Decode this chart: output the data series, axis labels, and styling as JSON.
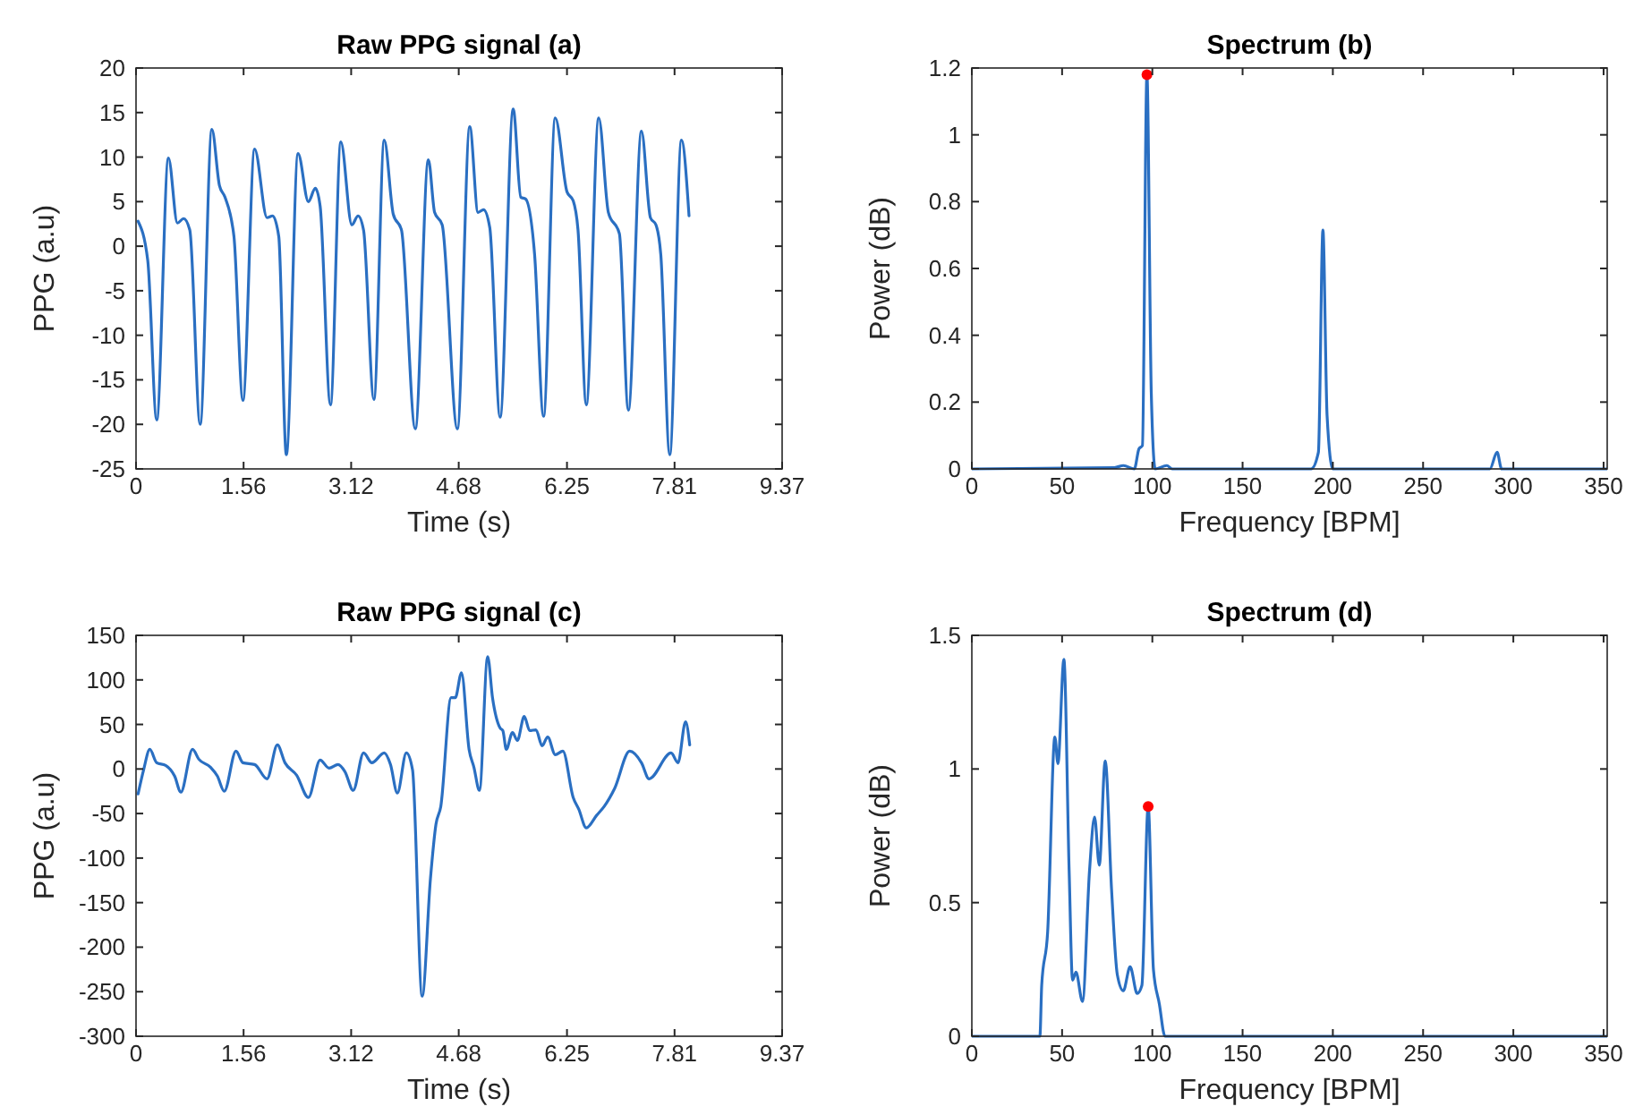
{
  "chart_data": [
    {
      "type": "line",
      "title": "Raw PPG signal (a)",
      "xlabel": "Time (s)",
      "ylabel": "PPG (a.u)",
      "xlim": [
        0,
        9.37
      ],
      "xticks": [
        0,
        1.56,
        3.12,
        4.68,
        6.25,
        7.81,
        9.37
      ],
      "ylim": [
        -25,
        20
      ],
      "yticks": [
        -25,
        -20,
        -15,
        -10,
        -5,
        0,
        5,
        10,
        15,
        20
      ],
      "grid": false,
      "series": [
        {
          "type": "line",
          "color": "#2a6fc2",
          "x": [
            0.03,
            0.17,
            0.3,
            0.47,
            0.6,
            0.69,
            0.78,
            0.93,
            1.1,
            1.21,
            1.29,
            1.42,
            1.55,
            1.72,
            1.9,
            1.98,
            2.07,
            2.18,
            2.35,
            2.5,
            2.6,
            2.67,
            2.82,
            2.97,
            3.13,
            3.22,
            3.3,
            3.45,
            3.6,
            3.73,
            3.85,
            4.05,
            4.24,
            4.33,
            4.44,
            4.66,
            4.84,
            4.96,
            5.04,
            5.13,
            5.28,
            5.47,
            5.58,
            5.65,
            5.78,
            5.91,
            6.08,
            6.25,
            6.34,
            6.41,
            6.53,
            6.71,
            6.85,
            7.01,
            7.14,
            7.33,
            7.46,
            7.54,
            7.61,
            7.74,
            7.91,
            8.02
          ],
          "values": [
            2.8,
            -1.6,
            -19.5,
            9.9,
            2.6,
            3.1,
            1.8,
            -20,
            13.1,
            6.8,
            5.5,
            1.1,
            -17.3,
            10.9,
            3.2,
            3.4,
            1.1,
            -23.4,
            10.4,
            5,
            6.5,
            4.5,
            -17.8,
            11.7,
            2.4,
            3.4,
            1.8,
            -17.2,
            11.9,
            3.6,
            1.8,
            -20.5,
            9.7,
            3.8,
            2.4,
            -20.5,
            13.4,
            3.8,
            4.1,
            2.1,
            -19.2,
            15.4,
            5.5,
            5.3,
            -0.9,
            -19.1,
            14.4,
            6.1,
            5.1,
            1.8,
            -17.8,
            14.4,
            3.8,
            1.4,
            -18.4,
            12.9,
            3.2,
            2.4,
            -0.9,
            -23.4,
            11.9,
            3.4
          ]
        }
      ]
    },
    {
      "type": "line",
      "title": "Spectrum (b)",
      "xlabel": "Frequency [BPM]",
      "ylabel": "Power (dB)",
      "xlim": [
        0,
        352
      ],
      "xticks": [
        0,
        50,
        100,
        150,
        200,
        250,
        300,
        350
      ],
      "ylim": [
        0,
        1.2
      ],
      "yticks": [
        0,
        0.2,
        0.4,
        0.6,
        0.8,
        1,
        1.2
      ],
      "grid": false,
      "series": [
        {
          "type": "line",
          "color": "#2a6fc2",
          "x": [
            0,
            79,
            84,
            90,
            92.6,
            94.5,
            97,
            99.4,
            101.6,
            108,
            111,
            188,
            192,
            194.5,
            196.8,
            200,
            287,
            291,
            293.5,
            352
          ],
          "values": [
            0,
            0.004,
            0.01,
            0,
            0.06,
            0.07,
            1.18,
            0.23,
            0,
            0.01,
            0,
            0,
            0.05,
            0.715,
            0.16,
            0,
            0,
            0.05,
            0,
            0
          ]
        },
        {
          "type": "scatter",
          "color": "#ff0000",
          "marker": "circle",
          "x": [
            97
          ],
          "values": [
            1.18
          ]
        }
      ]
    },
    {
      "type": "line",
      "title": "Raw PPG signal (c)",
      "xlabel": "Time (s)",
      "ylabel": "PPG (a.u)",
      "xlim": [
        0,
        9.37
      ],
      "xticks": [
        0,
        1.56,
        3.12,
        4.68,
        6.25,
        7.81,
        9.37
      ],
      "ylim": [
        -300,
        150
      ],
      "yticks": [
        -300,
        -250,
        -200,
        -150,
        -100,
        -50,
        0,
        50,
        100,
        150
      ],
      "grid": false,
      "series": [
        {
          "type": "line",
          "color": "#2a6fc2",
          "x": [
            0.03,
            0.11,
            0.2,
            0.3,
            0.43,
            0.56,
            0.65,
            0.82,
            0.91,
            1.08,
            1.18,
            1.28,
            1.45,
            1.55,
            1.72,
            1.9,
            2.05,
            2.16,
            2.33,
            2.5,
            2.67,
            2.8,
            2.93,
            3.03,
            3.15,
            3.3,
            3.42,
            3.6,
            3.69,
            3.79,
            3.92,
            4.01,
            4.15,
            4.27,
            4.35,
            4.42,
            4.57,
            4.63,
            4.72,
            4.83,
            4.9,
            4.98,
            5.1,
            5.17,
            5.28,
            5.32,
            5.37,
            5.46,
            5.53,
            5.63,
            5.71,
            5.8,
            5.89,
            5.97,
            6.08,
            6.19,
            6.34,
            6.42,
            6.53,
            6.68,
            6.79,
            6.94,
            7.16,
            7.33,
            7.44,
            7.76,
            7.86,
            7.97,
            8.03
          ],
          "values": [
            -28,
            -1,
            22,
            7,
            4,
            -8,
            -26,
            22,
            11,
            2,
            -8,
            -25,
            20,
            7,
            5,
            -11,
            27,
            7,
            -7,
            -32,
            10,
            1,
            5,
            -3,
            -24,
            18,
            7,
            18,
            5,
            -27,
            18,
            -1,
            -255,
            -123,
            -62,
            -42,
            80,
            80,
            108,
            22,
            2,
            -24,
            126,
            80,
            46,
            43,
            22,
            41,
            32,
            59,
            43,
            44,
            26,
            36,
            16,
            20,
            -32,
            -45,
            -66,
            -52,
            -42,
            -22,
            20,
            7,
            -11,
            18,
            7,
            53,
            27
          ]
        }
      ]
    },
    {
      "type": "line",
      "title": "Spectrum (d)",
      "xlabel": "Frequency [BPM]",
      "ylabel": "Power (dB)",
      "xlim": [
        0,
        352
      ],
      "xticks": [
        0,
        50,
        100,
        150,
        200,
        250,
        300,
        350
      ],
      "ylim": [
        0,
        1.5
      ],
      "yticks": [
        0,
        0.5,
        1,
        1.5
      ],
      "grid": false,
      "series": [
        {
          "type": "line",
          "color": "#2a6fc2",
          "x": [
            0,
            37.7,
            38.7,
            42,
            46,
            47.7,
            51,
            53.9,
            55.8,
            57.7,
            61.3,
            65.2,
            68,
            70.6,
            73.9,
            77.4,
            80.6,
            83.9,
            87.7,
            91.6,
            94.2,
            97.7,
            100.6,
            103.9,
            107,
            352
          ],
          "values": [
            0,
            0,
            0.19,
            0.39,
            1.12,
            1.02,
            1.41,
            0.62,
            0.21,
            0.24,
            0.13,
            0.62,
            0.82,
            0.64,
            1.03,
            0.55,
            0.23,
            0.17,
            0.26,
            0.16,
            0.19,
            0.86,
            0.25,
            0.12,
            0,
            0
          ]
        },
        {
          "type": "scatter",
          "color": "#ff0000",
          "marker": "circle",
          "x": [
            97.7
          ],
          "values": [
            0.86
          ]
        }
      ]
    }
  ]
}
